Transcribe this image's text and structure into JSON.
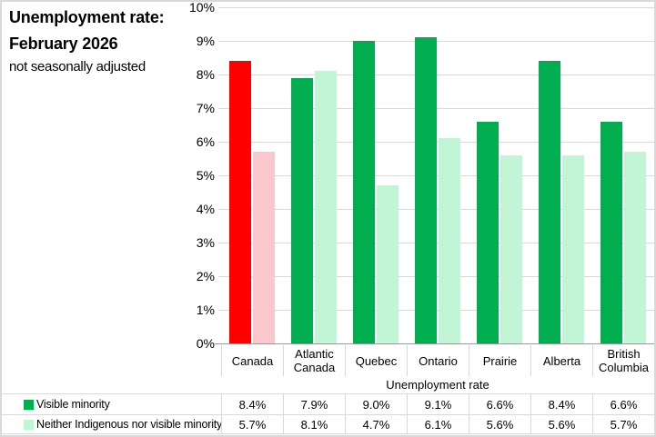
{
  "title": {
    "line1": "Unemployment rate:",
    "line2": "February 2026",
    "line3": "not seasonally adjusted"
  },
  "chart_data": {
    "type": "bar",
    "title": "Unemployment rate: February 2026",
    "subtitle": "not seasonally adjusted",
    "categories": [
      "Canada",
      "Atlantic Canada",
      "Quebec",
      "Ontario",
      "Prairie",
      "Alberta",
      "British Columbia"
    ],
    "series": [
      {
        "name": "Visible minority",
        "values": [
          8.4,
          7.9,
          9.0,
          9.1,
          6.6,
          8.4,
          6.6
        ],
        "display_values": [
          "8.4%",
          "7.9%",
          "9.0%",
          "9.1%",
          "6.6%",
          "8.4%",
          "6.6%"
        ],
        "bar_colors": [
          "#ff0000",
          "#00ae4f",
          "#00ae4f",
          "#00ae4f",
          "#00ae4f",
          "#00ae4f",
          "#00ae4f"
        ],
        "legend_color": "#00ae4f"
      },
      {
        "name": "Neither Indigenous nor visible minority",
        "values": [
          5.7,
          8.1,
          4.7,
          6.1,
          5.6,
          5.6,
          5.7
        ],
        "display_values": [
          "5.7%",
          "8.1%",
          "4.7%",
          "6.1%",
          "5.6%",
          "5.6%",
          "5.7%"
        ],
        "bar_colors": [
          "#fac8cc",
          "#c2f5d6",
          "#c2f5d6",
          "#c2f5d6",
          "#c2f5d6",
          "#c2f5d6",
          "#c2f5d6"
        ],
        "legend_color": "#c2f5d6"
      }
    ],
    "ylim": [
      0,
      10
    ],
    "yticks": [
      {
        "value": 0,
        "label": "0%"
      },
      {
        "value": 1,
        "label": "1%"
      },
      {
        "value": 2,
        "label": "2%"
      },
      {
        "value": 3,
        "label": "3%"
      },
      {
        "value": 4,
        "label": "4%"
      },
      {
        "value": 5,
        "label": "5%"
      },
      {
        "value": 6,
        "label": "6%"
      },
      {
        "value": 7,
        "label": "7%"
      },
      {
        "value": 8,
        "label": "8%"
      },
      {
        "value": 9,
        "label": "9%"
      },
      {
        "value": 10,
        "label": "10%"
      }
    ],
    "grid": true,
    "legend_position": "bottom-table",
    "table_header": "Unemployment rate"
  },
  "colors": {
    "grid": "#d9d9d9",
    "axis": "#999999",
    "table_line": "#d9d9d9",
    "frame_border": "#d9d9d9",
    "text": "#000000",
    "background": "#ffffff"
  }
}
